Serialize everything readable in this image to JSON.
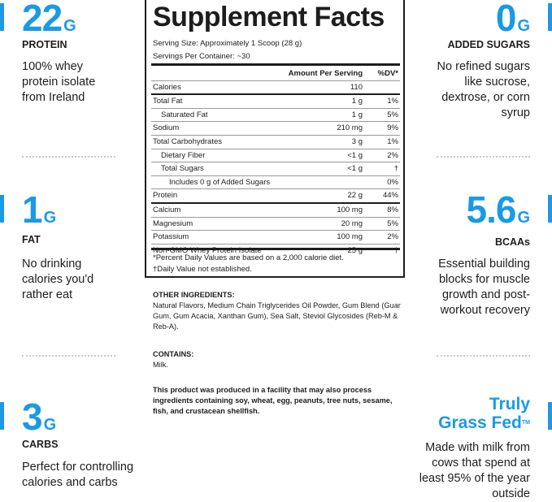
{
  "colors": {
    "accent": "#1b9ae4",
    "text": "#1d1d1d"
  },
  "left": [
    {
      "value": "22",
      "unit": "G",
      "label": "PROTEIN",
      "desc": "100% whey protein isolate from Ireland"
    },
    {
      "value": "1",
      "unit": "G",
      "label": "FAT",
      "desc": "No drinking calories you'd rather eat"
    },
    {
      "value": "3",
      "unit": "G",
      "label": "CARBS",
      "desc": "Perfect for controlling calories and carbs"
    }
  ],
  "right": [
    {
      "value": "0",
      "unit": "G",
      "label": "ADDED SUGARS",
      "desc": "No refined sugars like sucrose, dextrose, or corn syrup"
    },
    {
      "value": "5.6",
      "unit": "G",
      "label": "BCAAs",
      "desc": "Essential building blocks for muscle growth and post-workout recovery"
    },
    {
      "line1": "Truly",
      "line2": "Grass Fed",
      "tm": "TM",
      "desc": "Made with milk from cows that spend at least 95% of the year outside"
    }
  ],
  "facts": {
    "title": "Supplement Facts",
    "serving_size": "Serving Size: Approximately 1 Scoop (28 g)",
    "servings": "Servings Per Container: ~30",
    "header": {
      "amount": "Amount Per Serving",
      "dv": "%DV*"
    },
    "rows": [
      {
        "name": "Calories",
        "amount": "110",
        "dv": "",
        "indent": 0
      },
      {
        "name": "Total Fat",
        "amount": "1 g",
        "dv": "1%",
        "indent": 0,
        "heavy": true
      },
      {
        "name": "Saturated Fat",
        "amount": "1 g",
        "dv": "5%",
        "indent": 1
      },
      {
        "name": "Sodium",
        "amount": "210 mg",
        "dv": "9%",
        "indent": 0
      },
      {
        "name": "Total Carbohydrates",
        "amount": "3 g",
        "dv": "1%",
        "indent": 0
      },
      {
        "name": "Dietary Fiber",
        "amount": "<1 g",
        "dv": "2%",
        "indent": 1
      },
      {
        "name": "Total Sugars",
        "amount": "<1 g",
        "dv": "†",
        "indent": 1
      },
      {
        "name": "Includes 0 g of Added Sugars",
        "amount": "",
        "dv": "0%",
        "indent": 2
      },
      {
        "name": "Protein",
        "amount": "22 g",
        "dv": "44%",
        "indent": 0
      },
      {
        "name": "Calcium",
        "amount": "100 mg",
        "dv": "8%",
        "indent": 0,
        "heavy": true
      },
      {
        "name": "Magnesium",
        "amount": "20 mg",
        "dv": "5%",
        "indent": 0
      },
      {
        "name": "Potassium",
        "amount": "100 mg",
        "dv": "2%",
        "indent": 0
      },
      {
        "name": "Non-GMO Whey Protein Isolate",
        "amount": "25 g",
        "dv": "†",
        "indent": 0
      }
    ],
    "footnote1": "*Percent Daily Values are based on a 2,000 calorie diet.",
    "footnote2": "†Daily Value not established."
  },
  "ingredients": {
    "other_title": "OTHER INGREDIENTS:",
    "other_text": "Natural Flavors, Medium Chain Triglycerides Oil Powder, Gum Blend (Guar Gum, Gum Acacia, Xanthan Gum), Sea Salt, Steviol Glycosides (Reb-M & Reb-A).",
    "contains_title": "CONTAINS:",
    "contains_text": "Milk.",
    "facility": "This product was produced in a facility that may also process ingredients containing soy, wheat, egg, peanuts, tree nuts, sesame, fish, and crustacean shellfish."
  }
}
